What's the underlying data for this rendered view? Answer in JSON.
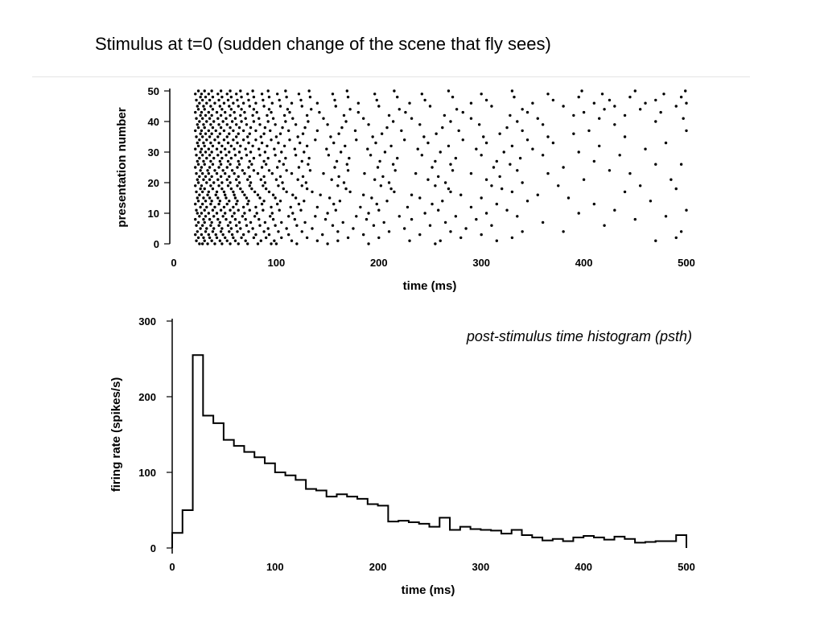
{
  "slide": {
    "title": "Stimulus at t=0 (sudden change of the scene that fly sees)"
  },
  "chart_data": [
    {
      "type": "scatter",
      "name": "raster",
      "xlabel": "time (ms)",
      "ylabel": "presentation number",
      "xlim": [
        0,
        500
      ],
      "ylim": [
        0,
        50
      ],
      "xticks": [
        0,
        100,
        200,
        300,
        400,
        500
      ],
      "yticks": [
        0,
        10,
        20,
        30,
        40,
        50
      ],
      "grid": false,
      "marker_color": "#000000",
      "trials": [
        [
          25,
          28,
          33,
          40,
          47,
          55,
          63,
          72,
          82,
          95,
          100,
          120,
          150,
          190,
          255
        ],
        [
          22,
          30,
          37,
          45,
          52,
          60,
          70,
          85,
          98,
          115,
          140,
          160,
          230,
          260,
          315,
          470
        ],
        [
          24,
          29,
          35,
          42,
          50,
          58,
          66,
          78,
          90,
          105,
          130,
          170,
          200,
          280,
          330,
          490
        ],
        [
          21,
          27,
          34,
          41,
          48,
          57,
          68,
          80,
          93,
          112,
          145,
          185,
          240,
          300
        ],
        [
          23,
          31,
          38,
          46,
          54,
          62,
          73,
          88,
          102,
          125,
          160,
          210,
          270,
          340,
          380,
          495
        ],
        [
          26,
          32,
          39,
          47,
          56,
          65,
          77,
          92,
          110,
          135,
          175,
          225,
          285
        ],
        [
          22,
          28,
          36,
          44,
          53,
          61,
          71,
          84,
          99,
          120,
          155,
          195,
          250,
          310,
          420
        ],
        [
          24,
          30,
          37,
          45,
          55,
          64,
          75,
          89,
          105,
          128,
          165,
          205,
          265,
          360
        ],
        [
          21,
          29,
          35,
          43,
          51,
          60,
          70,
          83,
          97,
          118,
          148,
          188,
          232,
          295,
          450
        ],
        [
          25,
          31,
          39,
          48,
          57,
          67,
          79,
          94,
          112,
          138,
          178,
          220,
          275,
          335,
          480
        ],
        [
          23,
          27,
          34,
          42,
          50,
          59,
          69,
          81,
          96,
          116,
          150,
          190,
          245,
          305,
          395
        ],
        [
          22,
          30,
          38,
          46,
          55,
          63,
          74,
          87,
          103,
          124,
          158,
          200,
          258,
          325,
          430,
          500
        ],
        [
          26,
          32,
          40,
          49,
          58,
          68,
          80,
          95,
          114,
          140,
          182,
          228,
          290
        ],
        [
          21,
          28,
          36,
          44,
          52,
          61,
          72,
          86,
          101,
          122,
          156,
          198,
          252,
          315,
          410
        ],
        [
          24,
          31,
          37,
          45,
          54,
          62,
          73,
          88,
          104,
          127,
          162,
          208,
          262,
          345,
          465
        ],
        [
          23,
          29,
          35,
          43,
          51,
          60,
          71,
          84,
          99,
          119,
          152,
          193,
          240,
          300,
          385
        ],
        [
          25,
          33,
          41,
          50,
          59,
          69,
          82,
          97,
          116,
          143,
          185,
          232,
          280,
          355
        ],
        [
          22,
          28,
          34,
          42,
          49,
          58,
          67,
          79,
          93,
          110,
          135,
          172,
          215,
          270,
          330,
          440
        ],
        [
          26,
          30,
          38,
          47,
          56,
          65,
          76,
          90,
          107,
          130,
          168,
          212,
          268,
          320,
          490
        ],
        [
          21,
          27,
          36,
          44,
          53,
          62,
          74,
          87,
          102,
          125,
          160,
          202,
          255,
          310,
          375,
          455
        ],
        [
          24,
          32,
          39,
          47,
          55,
          64,
          75,
          89,
          106,
          129,
          166,
          210,
          265,
          340
        ],
        [
          23,
          29,
          35,
          43,
          52,
          61,
          72,
          85,
          100,
          121,
          154,
          196,
          248,
          305,
          400,
          485
        ],
        [
          25,
          31,
          37,
          46,
          54,
          63,
          74,
          88,
          104,
          126,
          161,
          204,
          258,
          318
        ],
        [
          22,
          28,
          34,
          42,
          50,
          59,
          69,
          82,
          96,
          115,
          146,
          186,
          236,
          290,
          365,
          445
        ],
        [
          26,
          33,
          40,
          48,
          57,
          67,
          78,
          93,
          110,
          133,
          170,
          216,
          272,
          335,
          425
        ],
        [
          21,
          27,
          35,
          44,
          52,
          62,
          73,
          86,
          101,
          122,
          157,
          199,
          252,
          312,
          380
        ],
        [
          24,
          30,
          38,
          46,
          55,
          64,
          76,
          90,
          107,
          131,
          169,
          214,
          270,
          328,
          470,
          495
        ],
        [
          23,
          29,
          36,
          45,
          53,
          63,
          74,
          88,
          103,
          125,
          159,
          201,
          255,
          315,
          410
        ],
        [
          25,
          32,
          39,
          47,
          56,
          66,
          78,
          92,
          109,
          132,
          171,
          218,
          275,
          338
        ],
        [
          22,
          28,
          35,
          43,
          51,
          60,
          71,
          84,
          99,
          119,
          151,
          192,
          242,
          300,
          360,
          435
        ],
        [
          26,
          31,
          37,
          46,
          54,
          64,
          75,
          89,
          105,
          127,
          163,
          206,
          260,
          322,
          395
        ],
        [
          21,
          27,
          34,
          42,
          50,
          59,
          70,
          83,
          98,
          118,
          149,
          189,
          238,
          295,
          350,
          460
        ],
        [
          24,
          30,
          38,
          47,
          56,
          65,
          77,
          91,
          108,
          130,
          167,
          212,
          268,
          330,
          415
        ],
        [
          23,
          29,
          36,
          44,
          53,
          62,
          73,
          86,
          102,
          123,
          156,
          197,
          248,
          305,
          370,
          480
        ],
        [
          25,
          32,
          40,
          49,
          58,
          68,
          80,
          95,
          113,
          138,
          178,
          225,
          282,
          345
        ],
        [
          22,
          28,
          35,
          43,
          52,
          61,
          72,
          85,
          100,
          121,
          153,
          194,
          244,
          302,
          365,
          440
        ],
        [
          26,
          31,
          37,
          45,
          54,
          63,
          74,
          88,
          104,
          126,
          161,
          203,
          256,
          318,
          390
        ],
        [
          21,
          27,
          34,
          41,
          49,
          58,
          68,
          80,
          94,
          112,
          140,
          177,
          222,
          278,
          340,
          405,
          500
        ],
        [
          24,
          30,
          38,
          46,
          55,
          64,
          75,
          89,
          106,
          128,
          164,
          208,
          262,
          325
        ],
        [
          23,
          29,
          36,
          44,
          52,
          61,
          71,
          84,
          99,
          119,
          150,
          190,
          240,
          298,
          360,
          430
        ],
        [
          25,
          32,
          39,
          48,
          57,
          66,
          78,
          92,
          109,
          131,
          168,
          214,
          270,
          335,
          470
        ],
        [
          22,
          28,
          35,
          43,
          51,
          60,
          70,
          83,
          97,
          116,
          146,
          185,
          232,
          290,
          355,
          415,
          497
        ],
        [
          26,
          31,
          37,
          46,
          55,
          65,
          77,
          91,
          108,
          130,
          166,
          210,
          264,
          328,
          390,
          440
        ],
        [
          21,
          27,
          34,
          42,
          50,
          59,
          69,
          81,
          95,
          113,
          142,
          180,
          226,
          282,
          345,
          400,
          475
        ],
        [
          24,
          30,
          38,
          47,
          56,
          66,
          78,
          93,
          111,
          134,
          172,
          220,
          276,
          340,
          420,
          455
        ],
        [
          23,
          29,
          36,
          45,
          54,
          63,
          74,
          88,
          104,
          125,
          158,
          200,
          250,
          310,
          380,
          430,
          490
        ],
        [
          25,
          32,
          40,
          49,
          58,
          68,
          80,
          96,
          115,
          140,
          180,
          230,
          290,
          350,
          410,
          460,
          500
        ],
        [
          22,
          28,
          35,
          44,
          53,
          62,
          73,
          87,
          103,
          124,
          157,
          198,
          245,
          305,
          370,
          425,
          470
        ],
        [
          26,
          31,
          38,
          47,
          56,
          66,
          78,
          93,
          110,
          133,
          170,
          218,
          272,
          332,
          395,
          445,
          495
        ],
        [
          21,
          27,
          34,
          43,
          52,
          61,
          72,
          86,
          101,
          122,
          155,
          196,
          242,
          300,
          365,
          418,
          478
        ],
        [
          24,
          30,
          37,
          46,
          55,
          65,
          77,
          92,
          109,
          132,
          169,
          215,
          268,
          330,
          398,
          450,
          499
        ]
      ]
    },
    {
      "type": "histogram",
      "name": "psth",
      "title": "post-stimulus time histogram (psth)",
      "xlabel": "time (ms)",
      "ylabel": "firing rate (spikes/s)",
      "xlim": [
        0,
        500
      ],
      "ylim": [
        0,
        300
      ],
      "xticks": [
        0,
        100,
        200,
        300,
        400,
        500
      ],
      "yticks": [
        0,
        100,
        200,
        300
      ],
      "grid": false,
      "line_color": "#000000",
      "bins": [
        [
          0,
          10,
          20
        ],
        [
          10,
          20,
          50
        ],
        [
          20,
          30,
          255
        ],
        [
          30,
          40,
          175
        ],
        [
          40,
          50,
          165
        ],
        [
          50,
          60,
          143
        ],
        [
          60,
          70,
          135
        ],
        [
          70,
          80,
          127
        ],
        [
          80,
          90,
          120
        ],
        [
          90,
          100,
          112
        ],
        [
          100,
          110,
          100
        ],
        [
          110,
          120,
          96
        ],
        [
          120,
          130,
          90
        ],
        [
          130,
          140,
          78
        ],
        [
          140,
          150,
          76
        ],
        [
          150,
          160,
          68
        ],
        [
          160,
          170,
          71
        ],
        [
          170,
          180,
          68
        ],
        [
          180,
          190,
          65
        ],
        [
          190,
          200,
          58
        ],
        [
          200,
          210,
          56
        ],
        [
          210,
          220,
          35
        ],
        [
          220,
          230,
          36
        ],
        [
          230,
          240,
          34
        ],
        [
          240,
          250,
          32
        ],
        [
          250,
          260,
          28
        ],
        [
          260,
          270,
          40
        ],
        [
          270,
          280,
          24
        ],
        [
          280,
          290,
          28
        ],
        [
          290,
          300,
          25
        ],
        [
          300,
          310,
          24
        ],
        [
          310,
          320,
          23
        ],
        [
          320,
          330,
          19
        ],
        [
          330,
          340,
          24
        ],
        [
          340,
          350,
          17
        ],
        [
          350,
          360,
          14
        ],
        [
          360,
          370,
          10
        ],
        [
          370,
          380,
          12
        ],
        [
          380,
          390,
          9
        ],
        [
          390,
          400,
          14
        ],
        [
          400,
          410,
          16
        ],
        [
          410,
          420,
          14
        ],
        [
          420,
          430,
          11
        ],
        [
          430,
          440,
          15
        ],
        [
          440,
          450,
          12
        ],
        [
          450,
          460,
          7
        ],
        [
          460,
          470,
          8
        ],
        [
          470,
          480,
          9
        ],
        [
          480,
          490,
          9
        ],
        [
          490,
          500,
          17
        ]
      ]
    }
  ]
}
